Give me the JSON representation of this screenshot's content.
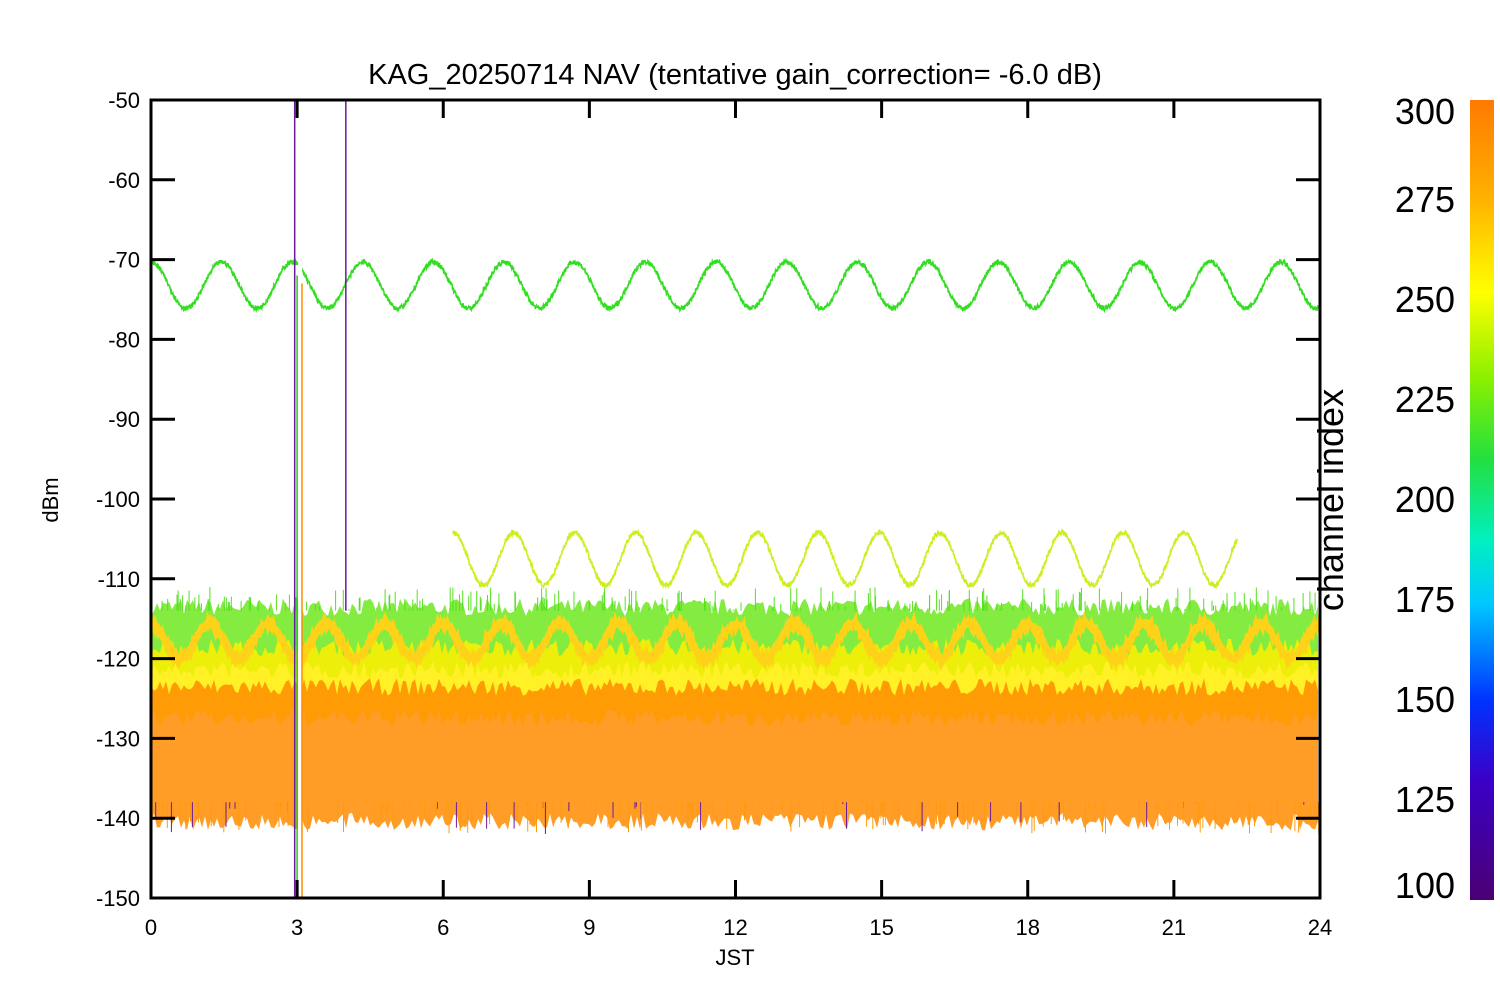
{
  "chart_data": {
    "type": "line",
    "title": "KAG_20250714 NAV (tentative gain_correction= -6.0 dB)",
    "xlabel": "JST",
    "ylabel": "dBm",
    "xlim": [
      0,
      24
    ],
    "ylim": [
      -150,
      -50
    ],
    "x_ticks": [
      "0",
      "3",
      "6",
      "9",
      "12",
      "15",
      "18",
      "21",
      "24"
    ],
    "y_ticks": [
      "-50",
      "-60",
      "-70",
      "-80",
      "-90",
      "-100",
      "-110",
      "-120",
      "-130",
      "-140",
      "-150"
    ],
    "colorbar": {
      "label": "channel index",
      "range": [
        100,
        300
      ],
      "ticks": [
        "300",
        "275",
        "250",
        "225",
        "200",
        "175",
        "150",
        "125",
        "100"
      ]
    },
    "series": [
      {
        "name": "channel ~230 (upper sinusoid)",
        "color": "#33dd22",
        "x_start": 0,
        "x_end": 24,
        "mean": -73.2,
        "amplitude": 2.9,
        "period_h": 1.45
      },
      {
        "name": "channel ~262 (middle sinusoid)",
        "color": "#ccee22",
        "x_start": 6.2,
        "x_end": 22.3,
        "mean": -107.5,
        "amplitude": 3.3,
        "period_h": 1.25
      },
      {
        "name": "channel ~272 (low sinusoid)",
        "color": "#ffd21a",
        "x_start": 0,
        "x_end": 24,
        "mean": -117.8,
        "amplitude": 2.2,
        "period_h": 1.2
      },
      {
        "name": "noise floor band upper",
        "color": "#6fe81f",
        "y_min": -121,
        "y_max": -114
      },
      {
        "name": "noise floor band middle",
        "color": "#ffee00",
        "y_min": -127,
        "y_max": -119
      },
      {
        "name": "noise floor band lower",
        "color": "#ff8c00",
        "y_min": -140,
        "y_max": -124
      }
    ],
    "spikes": [
      {
        "x": 2.95,
        "y_top": -50,
        "y_bottom": -150,
        "color": "#6a1b9a"
      },
      {
        "x": 3.0,
        "y_top": -72,
        "y_bottom": -150,
        "color": "#22cc22"
      },
      {
        "x": 3.1,
        "y_top": -73,
        "y_bottom": -150,
        "color": "#ff8c00"
      },
      {
        "x": 4.0,
        "y_top": -50,
        "y_bottom": -114,
        "color": "#6a1b9a"
      }
    ]
  }
}
